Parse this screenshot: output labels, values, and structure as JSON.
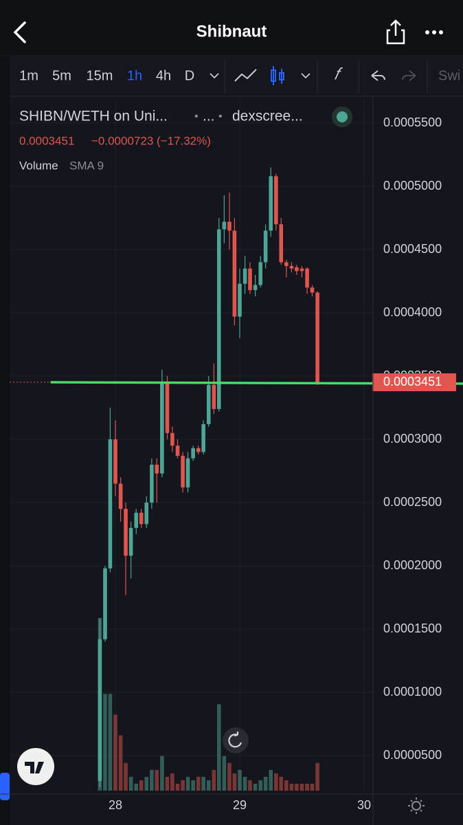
{
  "header": {
    "title": "Shibnaut"
  },
  "toolbar": {
    "intervals": [
      "1m",
      "5m",
      "15m",
      "1h",
      "4h",
      "D"
    ],
    "active": 3,
    "cut_text": "Swi"
  },
  "legend": {
    "symbol": "SHIBN/WETH on Uni...",
    "dot": "•",
    "more": "...",
    "source": "dexscree...",
    "change": "−0.0000723 (−17.32%)",
    "study": "Volume",
    "study_param": "SMA 9"
  },
  "chart_data": {
    "type": "candlestick",
    "x": [
      27.875,
      27.917,
      27.958,
      28.0,
      28.042,
      28.083,
      28.125,
      28.167,
      28.208,
      28.25,
      28.292,
      28.333,
      28.375,
      28.417,
      28.458,
      28.5,
      28.542,
      28.583,
      28.625,
      28.667,
      28.708,
      28.75,
      28.792,
      28.833,
      28.875,
      28.917,
      28.958,
      29.0,
      29.042,
      29.083,
      29.125,
      29.167,
      29.208,
      29.25,
      29.292,
      29.333,
      29.375,
      29.417,
      29.458,
      29.5,
      29.542,
      29.583,
      29.625
    ],
    "open": [
      3e-05,
      0.000142,
      0.000198,
      0.0003,
      0.000265,
      0.000245,
      0.000208,
      0.00023,
      0.000242,
      0.000233,
      0.00025,
      0.00028,
      0.000273,
      0.000345,
      0.000305,
      0.000295,
      0.000287,
      0.000262,
      0.000285,
      0.000293,
      0.00029,
      0.000312,
      0.000343,
      0.000324,
      0.000466,
      0.000472,
      0.000465,
      0.000397,
      0.000423,
      0.000435,
      0.000418,
      0.000422,
      0.00044,
      0.000465,
      0.000508,
      0.00047,
      0.00044,
      0.000437,
      0.000436,
      0.000435,
      0.000435,
      0.00042,
      0.000416
    ],
    "high": [
      0.000158,
      0.0002,
      0.000325,
      0.000315,
      0.00027,
      0.00025,
      0.000235,
      0.000245,
      0.000245,
      0.000255,
      0.000285,
      0.000285,
      0.000355,
      0.00035,
      0.00031,
      0.0003,
      0.00029,
      0.00029,
      0.000295,
      0.000295,
      0.000315,
      0.00035,
      0.00036,
      0.000475,
      0.000493,
      0.000495,
      0.000475,
      0.000435,
      0.000445,
      0.00044,
      0.00043,
      0.000445,
      0.00047,
      0.000515,
      0.00051,
      0.000475,
      0.000442,
      0.00044,
      0.000438,
      0.000437,
      0.000436,
      0.000422,
      0.000417
    ],
    "low": [
      2.5e-05,
      0.00014,
      0.000195,
      0.000255,
      0.000235,
      0.000177,
      0.00019,
      0.000225,
      0.00023,
      0.00023,
      0.000245,
      0.00025,
      0.00027,
      0.0003,
      0.00029,
      0.000285,
      0.000258,
      0.000258,
      0.000283,
      0.000288,
      0.000288,
      0.00031,
      0.00032,
      0.000322,
      0.000455,
      0.00045,
      0.00039,
      0.00038,
      0.000415,
      0.000415,
      0.000413,
      0.00042,
      0.000435,
      0.00046,
      0.000465,
      0.000438,
      0.000428,
      0.000432,
      0.00043,
      0.000428,
      0.000415,
      0.000413,
      0.000343
    ],
    "close": [
      0.000142,
      0.000198,
      0.0003,
      0.000265,
      0.000245,
      0.000208,
      0.00023,
      0.000242,
      0.000233,
      0.00025,
      0.00028,
      0.000273,
      0.000345,
      0.000305,
      0.000295,
      0.000287,
      0.000262,
      0.000285,
      0.000293,
      0.00029,
      0.000312,
      0.000343,
      0.000324,
      0.000466,
      0.000472,
      0.000465,
      0.000397,
      0.000423,
      0.000435,
      0.000418,
      0.000422,
      0.00044,
      0.000465,
      0.000508,
      0.00047,
      0.00044,
      0.000437,
      0.000435,
      0.000433,
      0.000433,
      0.00042,
      0.000416,
      0.0003451
    ],
    "volume": [
      250,
      140,
      140,
      110,
      80,
      40,
      20,
      10,
      15,
      20,
      30,
      30,
      50,
      20,
      25,
      10,
      15,
      20,
      15,
      20,
      20,
      15,
      30,
      125,
      50,
      40,
      25,
      30,
      20,
      15,
      10,
      15,
      20,
      30,
      25,
      20,
      15,
      10,
      10,
      10,
      10,
      10,
      40
    ],
    "volume_lim": [
      0,
      1000
    ],
    "up_color": "#4fa595",
    "down_color": "#e0554e",
    "last": 0.0003451,
    "line_color": "#4cd964",
    "xlim": [
      27.149,
      30.072
    ],
    "xticks": [
      28,
      29,
      30
    ],
    "ylim": [
      2.23e-05,
      0.0005685
    ],
    "yticks": [
      {
        "value": 5e-05,
        "label": "0.0000500"
      },
      {
        "value": 0.0001,
        "label": "0.0001000"
      },
      {
        "value": 0.00015,
        "label": "0.0001500"
      },
      {
        "value": 0.0002,
        "label": "0.0002000"
      },
      {
        "value": 0.00025,
        "label": "0.0002500"
      },
      {
        "value": 0.0003,
        "label": "0.0003000"
      },
      {
        "value": 0.00035,
        "label": "0.0003500"
      },
      {
        "value": 0.0004,
        "label": "0.0004000"
      },
      {
        "value": 0.00045,
        "label": "0.0004500"
      },
      {
        "value": 0.0005,
        "label": "0.0005000"
      },
      {
        "value": 0.00055,
        "label": "0.0005500"
      }
    ],
    "grid": true
  }
}
